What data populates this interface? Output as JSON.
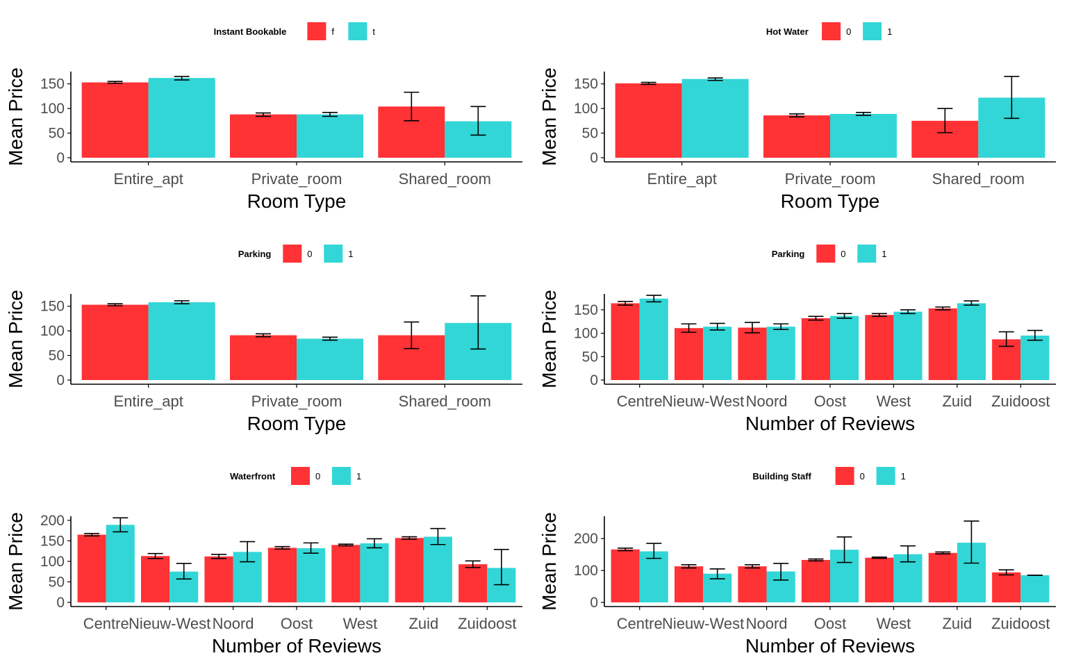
{
  "colors": {
    "group0": "#FF3236",
    "group1": "#33D6D6",
    "axis": "#000000",
    "tick_text": "#4D4D4D"
  },
  "chart_data": [
    {
      "type": "bar",
      "xlabel": "Room Type",
      "ylabel": "Mean Price",
      "ylim": [
        0,
        175
      ],
      "yticks": [
        0,
        50,
        100,
        150
      ],
      "legend": {
        "title": "Instant Bookable",
        "labels": [
          "f",
          "t"
        ],
        "position": "top"
      },
      "categories": [
        "Entire_apt",
        "Private_room",
        "Shared_room"
      ],
      "series": [
        {
          "name": "f",
          "values": [
            153,
            88,
            104
          ],
          "err_low": [
            151,
            84,
            75
          ],
          "err_high": [
            155,
            91,
            133
          ]
        },
        {
          "name": "t",
          "values": [
            162,
            88,
            74
          ],
          "err_low": [
            158,
            84,
            46
          ],
          "err_high": [
            165,
            92,
            104
          ]
        }
      ]
    },
    {
      "type": "bar",
      "xlabel": "Room Type",
      "ylabel": "Mean Price",
      "ylim": [
        0,
        175
      ],
      "yticks": [
        0,
        50,
        100,
        150
      ],
      "legend": {
        "title": "Hot Water",
        "labels": [
          "0",
          "1"
        ],
        "position": "top"
      },
      "categories": [
        "Entire_apt",
        "Private_room",
        "Shared_room"
      ],
      "series": [
        {
          "name": "0",
          "values": [
            151,
            86,
            75
          ],
          "err_low": [
            149,
            83,
            51
          ],
          "err_high": [
            153,
            89,
            100
          ]
        },
        {
          "name": "1",
          "values": [
            160,
            89,
            122
          ],
          "err_low": [
            157,
            86,
            80
          ],
          "err_high": [
            162,
            92,
            165
          ]
        }
      ]
    },
    {
      "type": "bar",
      "xlabel": "Room Type",
      "ylabel": "Mean Price",
      "ylim": [
        0,
        175
      ],
      "yticks": [
        0,
        50,
        100,
        150
      ],
      "legend": {
        "title": "Parking",
        "labels": [
          "0",
          "1"
        ],
        "position": "top"
      },
      "categories": [
        "Entire_apt",
        "Private_room",
        "Shared_room"
      ],
      "series": [
        {
          "name": "0",
          "values": [
            153,
            91,
            91
          ],
          "err_low": [
            151,
            88,
            64
          ],
          "err_high": [
            155,
            94,
            118
          ]
        },
        {
          "name": "1",
          "values": [
            158,
            84,
            116
          ],
          "err_low": [
            155,
            81,
            63
          ],
          "err_high": [
            161,
            87,
            171
          ]
        }
      ]
    },
    {
      "type": "bar",
      "xlabel": "Number of Reviews",
      "ylabel": "Mean Price",
      "ylim": [
        0,
        184
      ],
      "yticks": [
        0,
        50,
        100,
        150
      ],
      "legend": {
        "title": "Parking",
        "labels": [
          "0",
          "1"
        ],
        "position": "top"
      },
      "categories": [
        "Centre",
        "Nieuw-West",
        "Noord",
        "Oost",
        "West",
        "Zuid",
        "Zuidoost"
      ],
      "series": [
        {
          "name": "0",
          "values": [
            164,
            111,
            112,
            132,
            139,
            153,
            87
          ],
          "err_low": [
            160,
            102,
            101,
            128,
            136,
            150,
            72
          ],
          "err_high": [
            168,
            120,
            123,
            136,
            142,
            156,
            103
          ]
        },
        {
          "name": "1",
          "values": [
            174,
            114,
            114,
            137,
            146,
            164,
            95
          ],
          "err_low": [
            167,
            107,
            108,
            132,
            142,
            160,
            85
          ],
          "err_high": [
            181,
            121,
            120,
            142,
            150,
            169,
            106
          ]
        }
      ]
    },
    {
      "type": "bar",
      "xlabel": "Number of Reviews",
      "ylabel": "Mean Price",
      "ylim": [
        0,
        210
      ],
      "yticks": [
        0,
        50,
        100,
        150,
        200
      ],
      "legend": {
        "title": "Waterfront",
        "labels": [
          "0",
          "1"
        ],
        "position": "top"
      },
      "categories": [
        "Centre",
        "Nieuw-West",
        "Noord",
        "Oost",
        "West",
        "Zuid",
        "Zuidoost"
      ],
      "series": [
        {
          "name": "0",
          "values": [
            165,
            113,
            112,
            133,
            140,
            157,
            93
          ],
          "err_low": [
            162,
            107,
            107,
            130,
            138,
            154,
            85
          ],
          "err_high": [
            168,
            119,
            117,
            136,
            142,
            160,
            101
          ]
        },
        {
          "name": "1",
          "values": [
            189,
            75,
            123,
            132,
            144,
            160,
            84
          ],
          "err_low": [
            172,
            57,
            99,
            120,
            133,
            141,
            43
          ],
          "err_high": [
            206,
            95,
            148,
            145,
            155,
            180,
            129
          ]
        }
      ]
    },
    {
      "type": "bar",
      "xlabel": "Number of Reviews",
      "ylabel": "Mean Price",
      "ylim": [
        0,
        270
      ],
      "yticks": [
        0,
        100,
        200
      ],
      "legend": {
        "title": "Building Staff",
        "labels": [
          "0",
          "1"
        ],
        "position": "top"
      },
      "categories": [
        "Centre",
        "Nieuw-West",
        "Noord",
        "Oost",
        "West",
        "Zuid",
        "Zuidoost"
      ],
      "series": [
        {
          "name": "0",
          "values": [
            166,
            113,
            113,
            133,
            140,
            155,
            94
          ],
          "err_low": [
            162,
            108,
            108,
            130,
            138,
            152,
            86
          ],
          "err_high": [
            170,
            118,
            118,
            136,
            142,
            158,
            102
          ]
        },
        {
          "name": "1",
          "values": [
            160,
            90,
            97,
            165,
            151,
            187,
            85
          ],
          "err_low": [
            138,
            74,
            70,
            125,
            127,
            123,
            85
          ],
          "err_high": [
            185,
            105,
            122,
            205,
            177,
            255,
            85
          ]
        }
      ]
    }
  ]
}
